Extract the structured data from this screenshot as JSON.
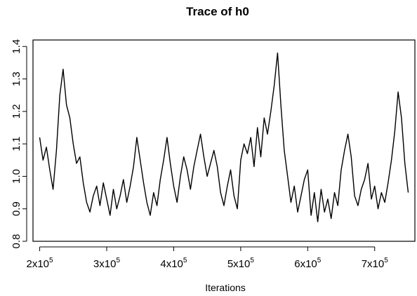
{
  "chart_data": {
    "type": "line",
    "title": "Trace of h0",
    "xlabel": "Iterations",
    "ylabel": "",
    "xlim": [
      190000,
      760000
    ],
    "ylim": [
      0.8,
      1.42
    ],
    "grid": false,
    "legend": "none",
    "x_ticks": [
      {
        "value": 200000,
        "mantissa": "2x10",
        "exponent": "5"
      },
      {
        "value": 300000,
        "mantissa": "3x10",
        "exponent": "5"
      },
      {
        "value": 400000,
        "mantissa": "4x10",
        "exponent": "5"
      },
      {
        "value": 500000,
        "mantissa": "5x10",
        "exponent": "5"
      },
      {
        "value": 600000,
        "mantissa": "6x10",
        "exponent": "5"
      },
      {
        "value": 700000,
        "mantissa": "7x10",
        "exponent": "5"
      }
    ],
    "y_ticks": [
      {
        "value": 0.8,
        "label": "0.8"
      },
      {
        "value": 0.9,
        "label": "0.9"
      },
      {
        "value": 1.0,
        "label": "1.0"
      },
      {
        "value": 1.1,
        "label": "1.1"
      },
      {
        "value": 1.2,
        "label": "1.2"
      },
      {
        "value": 1.3,
        "label": "1.3"
      },
      {
        "value": 1.4,
        "label": "1.4"
      }
    ],
    "series": [
      {
        "color": "#000000",
        "x": [
          200000,
          205000,
          210000,
          215000,
          220000,
          225000,
          230000,
          235000,
          240000,
          245000,
          250000,
          255000,
          260000,
          265000,
          270000,
          275000,
          280000,
          285000,
          290000,
          295000,
          300000,
          305000,
          310000,
          315000,
          320000,
          325000,
          330000,
          335000,
          340000,
          345000,
          350000,
          355000,
          360000,
          365000,
          370000,
          375000,
          380000,
          385000,
          390000,
          395000,
          400000,
          405000,
          410000,
          415000,
          420000,
          425000,
          430000,
          435000,
          440000,
          445000,
          450000,
          455000,
          460000,
          465000,
          470000,
          475000,
          480000,
          485000,
          490000,
          495000,
          500000,
          505000,
          510000,
          515000,
          520000,
          525000,
          530000,
          535000,
          540000,
          545000,
          550000,
          555000,
          560000,
          565000,
          570000,
          575000,
          580000,
          585000,
          590000,
          595000,
          600000,
          605000,
          610000,
          615000,
          620000,
          625000,
          630000,
          635000,
          640000,
          645000,
          650000,
          655000,
          660000,
          665000,
          670000,
          675000,
          680000,
          685000,
          690000,
          695000,
          700000,
          705000,
          710000,
          715000,
          720000,
          725000,
          730000,
          735000,
          740000,
          745000,
          750000
        ],
        "y": [
          1.12,
          1.05,
          1.09,
          1.02,
          0.96,
          1.08,
          1.25,
          1.33,
          1.22,
          1.18,
          1.1,
          1.04,
          1.06,
          0.98,
          0.92,
          0.89,
          0.94,
          0.97,
          0.91,
          0.98,
          0.93,
          0.88,
          0.96,
          0.9,
          0.94,
          0.99,
          0.92,
          0.97,
          1.03,
          1.12,
          1.05,
          0.98,
          0.92,
          0.88,
          0.95,
          0.91,
          0.99,
          1.05,
          1.12,
          1.04,
          0.97,
          0.92,
          1.0,
          1.06,
          1.02,
          0.96,
          1.03,
          1.08,
          1.13,
          1.06,
          1.0,
          1.04,
          1.08,
          1.03,
          0.95,
          0.91,
          0.97,
          1.02,
          0.94,
          0.9,
          1.05,
          1.1,
          1.07,
          1.12,
          1.03,
          1.15,
          1.06,
          1.18,
          1.13,
          1.2,
          1.28,
          1.38,
          1.22,
          1.08,
          1.0,
          0.92,
          0.97,
          0.89,
          0.94,
          0.99,
          1.02,
          0.88,
          0.95,
          0.86,
          0.96,
          0.89,
          0.93,
          0.87,
          0.95,
          0.91,
          1.02,
          1.08,
          1.13,
          1.06,
          0.94,
          0.91,
          0.96,
          0.99,
          1.04,
          0.93,
          0.97,
          0.9,
          0.95,
          0.92,
          0.98,
          1.05,
          1.14,
          1.26,
          1.18,
          1.04,
          0.95
        ]
      }
    ]
  }
}
